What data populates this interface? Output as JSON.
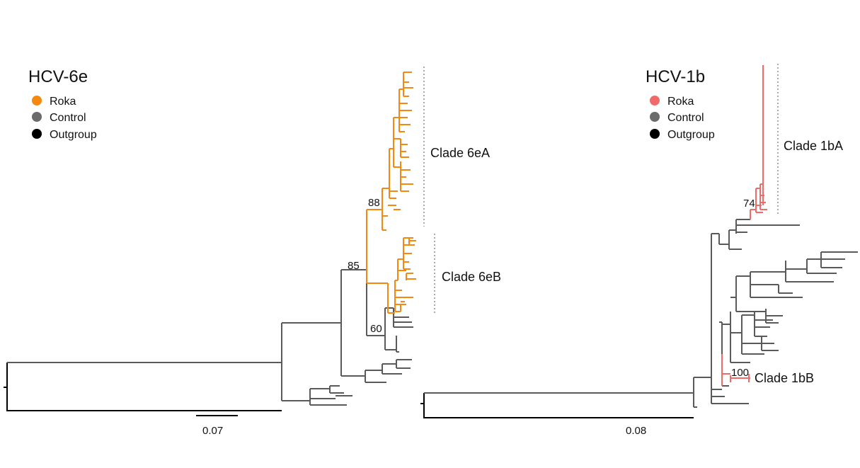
{
  "panels": [
    {
      "title": "HCV-6e",
      "legend": [
        {
          "label": "Roka",
          "color": "#f5890f"
        },
        {
          "label": "Control",
          "color": "#6b6b6b"
        },
        {
          "label": "Outgroup",
          "color": "#000000"
        }
      ],
      "clades": [
        "Clade 6eA",
        "Clade 6eB"
      ],
      "bootstrap": [
        "88",
        "85",
        "60"
      ],
      "scale_label": "0.07"
    },
    {
      "title": "HCV-1b",
      "legend": [
        {
          "label": "Roka",
          "color": "#f06a6a"
        },
        {
          "label": "Control",
          "color": "#6b6b6b"
        },
        {
          "label": "Outgroup",
          "color": "#000000"
        }
      ],
      "clades": [
        "Clade 1bA",
        "Clade 1bB"
      ],
      "bootstrap": [
        "74",
        "100"
      ],
      "scale_label": "0.08"
    }
  ],
  "colors": {
    "control_branch": "#5a5a5a",
    "outgroup_branch": "#000000",
    "clade_bracket": "#aaaaaa"
  }
}
